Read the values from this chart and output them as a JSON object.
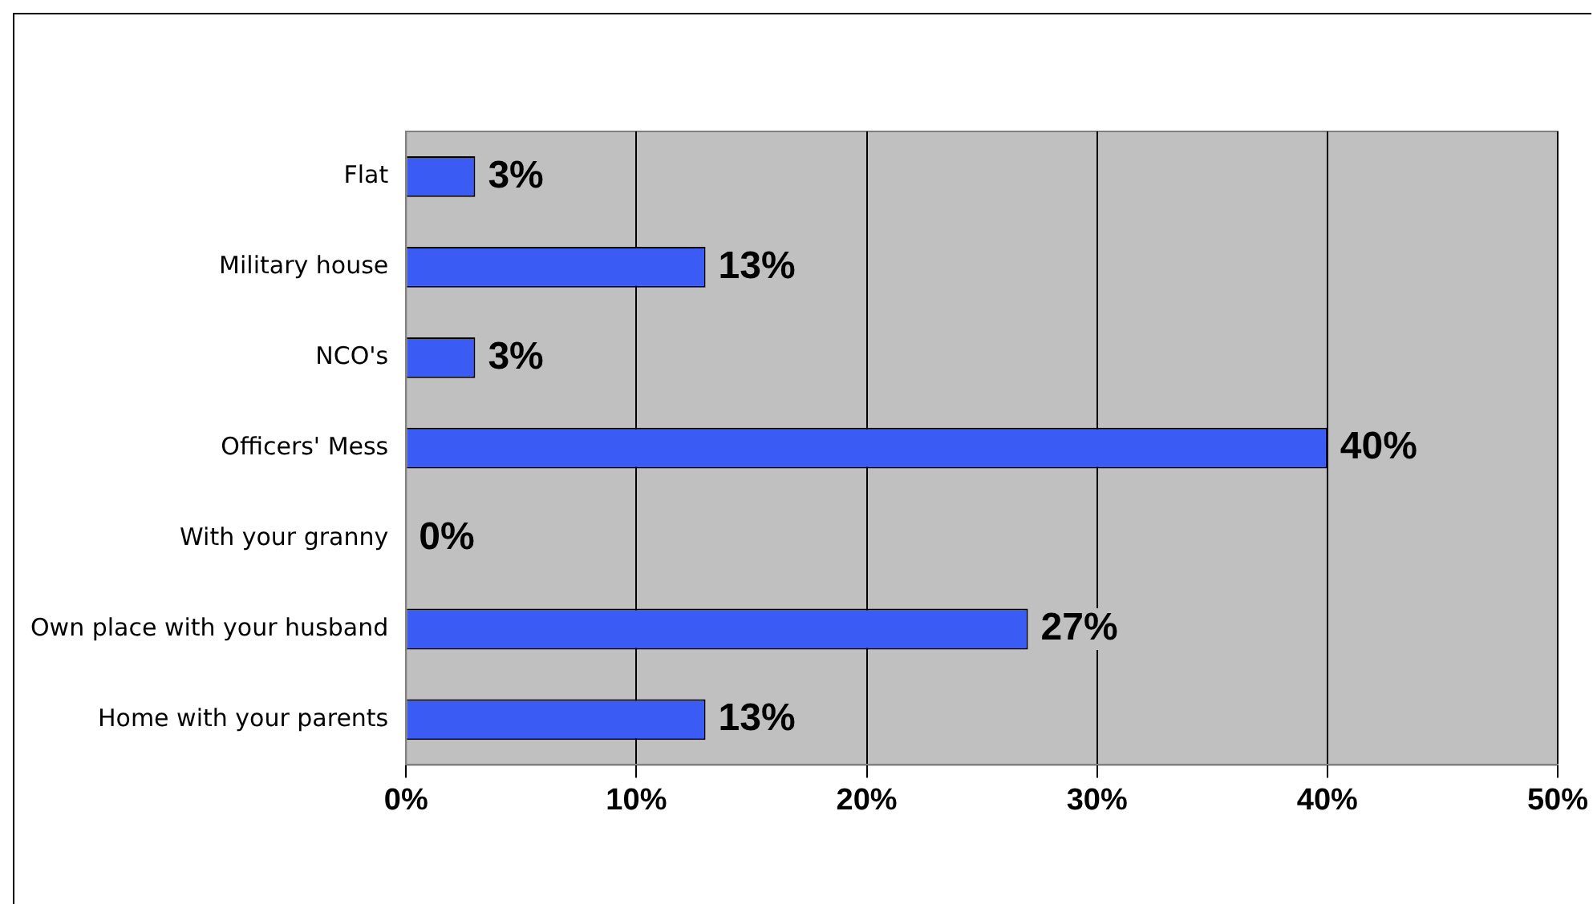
{
  "chart_data": {
    "type": "bar",
    "orientation": "horizontal",
    "categories": [
      "Flat",
      "Military house",
      "NCO's",
      "Officers' Mess",
      "With your granny",
      "Own place with your husband",
      "Home with your parents"
    ],
    "values": [
      3,
      13,
      3,
      40,
      0,
      27,
      13
    ],
    "value_labels": [
      "3%",
      "13%",
      "3%",
      "40%",
      "0%",
      "27%",
      "13%"
    ],
    "color": "#3a5cf5",
    "xlim": [
      0,
      50
    ],
    "xticks": [
      {
        "value": 0,
        "label": "0%"
      },
      {
        "value": 10,
        "label": "10%"
      },
      {
        "value": 20,
        "label": "20%"
      },
      {
        "value": 30,
        "label": "30%"
      },
      {
        "value": 40,
        "label": "40%"
      },
      {
        "value": 50,
        "label": "50%"
      }
    ],
    "grid": "x",
    "legend": false
  }
}
